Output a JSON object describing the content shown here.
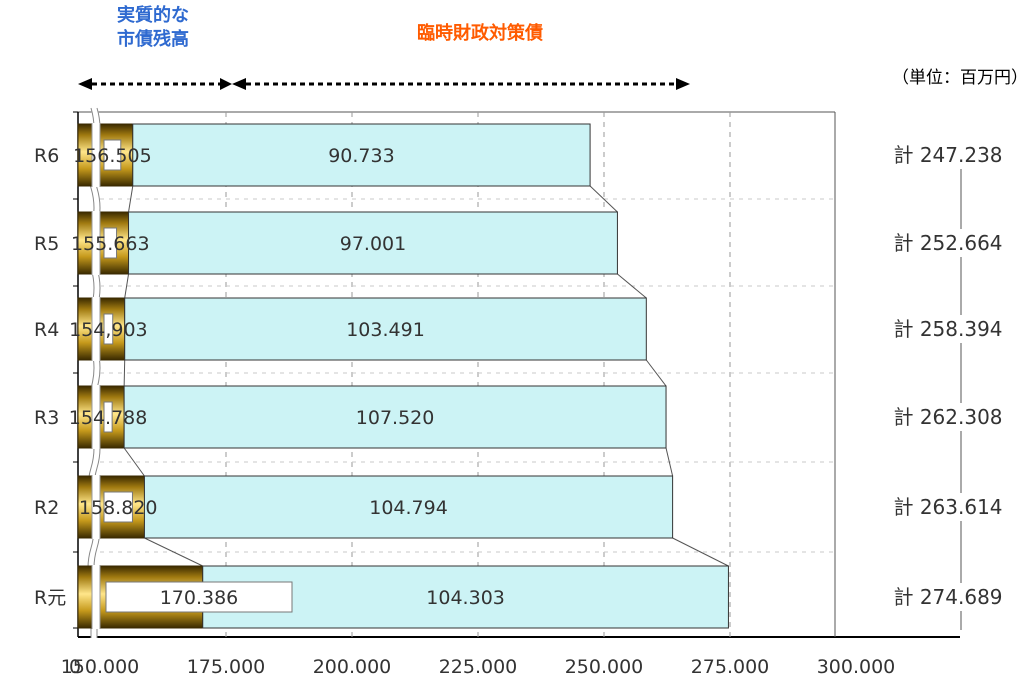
{
  "header": {
    "blue_line1": "実質的な",
    "blue_line2": "市債残高",
    "orange": "臨時財政対策債",
    "unit": "（単位：百万円）",
    "blue_color": "#2f6ad0",
    "orange_color": "#ff5b00"
  },
  "chart_data": {
    "type": "bar",
    "orientation": "horizontal",
    "stacked": true,
    "axis_break": "between 0 and 150,000",
    "categories": [
      "R6",
      "R5",
      "R4",
      "R3",
      "R2",
      "R元"
    ],
    "series": [
      {
        "name": "実質的な市債残高",
        "color": "#c9a21a",
        "values": [
          156505,
          155663,
          154903,
          154788,
          158820,
          170386
        ],
        "labels": [
          "156.505",
          "155.663",
          "154,903",
          "154.788",
          "158.820",
          "170.386"
        ]
      },
      {
        "name": "臨時財政対策債",
        "color": "#ccf3f5",
        "values": [
          90733,
          97001,
          103491,
          107520,
          104794,
          104303
        ],
        "labels": [
          "90.733",
          "97.001",
          "103.491",
          "107.520",
          "104.794",
          "104.303"
        ]
      }
    ],
    "totals": [
      "計 247.238",
      "計 252.664",
      "計 258.394",
      "計 262.308",
      "計 263.614",
      "計 274.689"
    ],
    "x_tick_labels": [
      "0",
      "150.000",
      "175.000",
      "200.000",
      "225.000",
      "250.000",
      "275.000",
      "300.000"
    ],
    "xlim": [
      150000,
      300000
    ],
    "grid": true
  }
}
